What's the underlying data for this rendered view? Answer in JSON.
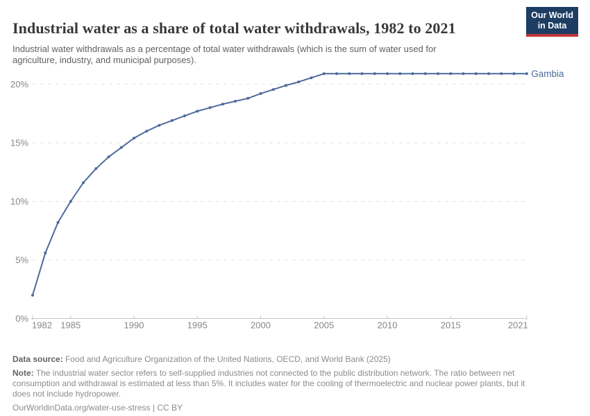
{
  "header": {
    "title": "Industrial water as a share of total water withdrawals, 1982 to 2021",
    "subtitle": "Industrial water withdrawals as a percentage of total water withdrawals (which is the sum of water used for\nagriculture, industry, and municipal purposes).",
    "logo_text": "Our World\nin Data"
  },
  "chart_data": {
    "type": "line",
    "title": "Industrial water as a share of total water withdrawals",
    "entity": "Gambia",
    "unit": "%",
    "x": [
      1982,
      1983,
      1984,
      1985,
      1986,
      1987,
      1988,
      1989,
      1990,
      1991,
      1992,
      1993,
      1994,
      1995,
      1996,
      1997,
      1998,
      1999,
      2000,
      2001,
      2002,
      2003,
      2004,
      2005,
      2006,
      2007,
      2008,
      2009,
      2010,
      2011,
      2012,
      2013,
      2014,
      2015,
      2016,
      2017,
      2018,
      2019,
      2020,
      2021
    ],
    "values": [
      2.0,
      5.6,
      8.2,
      10.0,
      11.6,
      12.8,
      13.8,
      14.6,
      15.4,
      16.0,
      16.5,
      16.9,
      17.3,
      17.7,
      18.0,
      18.3,
      18.55,
      18.8,
      19.2,
      19.55,
      19.9,
      20.2,
      20.55,
      20.9,
      20.9,
      20.9,
      20.9,
      20.9,
      20.9,
      20.9,
      20.9,
      20.9,
      20.9,
      20.9,
      20.9,
      20.9,
      20.9,
      20.9,
      20.9,
      20.9
    ],
    "ylim": [
      0,
      21
    ],
    "yticks": [
      0,
      5,
      10,
      15,
      20
    ],
    "ytick_suffix": "%",
    "xticks": [
      1982,
      1985,
      1990,
      1995,
      2000,
      2005,
      2010,
      2015,
      2021
    ],
    "grid": true,
    "legend_position": "end-of-line",
    "line_color": "#4c6a9c",
    "grid_color": "#e0e0e0",
    "axis_color": "#c6c6c6",
    "tick_label_color": "#878787"
  },
  "footer": {
    "data_source_label": "Data source:",
    "data_source": "Food and Agriculture Organization of the United Nations, OECD, and World Bank (2025)",
    "note_label": "Note:",
    "note": "The industrial water sector refers to self-supplied industries not connected to the public distribution network. The ratio between net\nconsumption and withdrawal is estimated at less than 5%. It includes water for the cooling of thermoelectric and nuclear power plants, but it\ndoes not include hydropower.",
    "url_label": "OurWorldinData.org/water-use-stress",
    "divider": "|",
    "license_label": "CC BY"
  }
}
